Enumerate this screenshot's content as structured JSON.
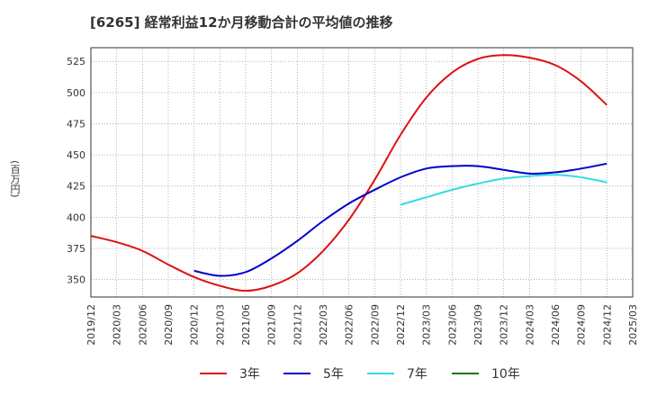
{
  "chart_data": {
    "type": "line",
    "title": "[6265]  経常利益12か月移動合計の平均値の推移",
    "ylabel": "(百万円)",
    "xlabel": "",
    "ylim": [
      336,
      536
    ],
    "yticks": [
      350,
      375,
      400,
      425,
      450,
      475,
      500,
      525
    ],
    "x_ticks": [
      "2019/12",
      "2020/03",
      "2020/06",
      "2020/09",
      "2020/12",
      "2021/03",
      "2021/06",
      "2021/09",
      "2021/12",
      "2022/03",
      "2022/06",
      "2022/09",
      "2022/12",
      "2023/03",
      "2023/06",
      "2023/09",
      "2023/12",
      "2024/03",
      "2024/06",
      "2024/09",
      "2024/12",
      "2025/03"
    ],
    "grid": true,
    "legend_position": "bottom",
    "series": [
      {
        "name": "3年",
        "color": "#dd1111",
        "x": [
          "2019/12",
          "2020/03",
          "2020/06",
          "2020/09",
          "2020/12",
          "2021/03",
          "2021/06",
          "2021/09",
          "2021/12",
          "2022/03",
          "2022/06",
          "2022/09",
          "2022/12",
          "2023/03",
          "2023/06",
          "2023/09",
          "2023/12",
          "2024/03",
          "2024/06",
          "2024/09",
          "2024/12"
        ],
        "values": [
          385,
          380,
          373,
          362,
          352,
          345,
          341,
          345,
          355,
          373,
          398,
          430,
          466,
          496,
          516,
          527,
          530,
          528,
          522,
          509,
          490
        ]
      },
      {
        "name": "5年",
        "color": "#0000cc",
        "x": [
          "2020/12",
          "2021/03",
          "2021/06",
          "2021/09",
          "2021/12",
          "2022/03",
          "2022/06",
          "2022/09",
          "2022/12",
          "2023/03",
          "2023/06",
          "2023/09",
          "2023/12",
          "2024/03",
          "2024/06",
          "2024/09",
          "2024/12"
        ],
        "values": [
          357,
          353,
          356,
          367,
          381,
          397,
          411,
          422,
          432,
          439,
          441,
          441,
          438,
          435,
          436,
          439,
          443
        ]
      },
      {
        "name": "7年",
        "color": "#33dddd",
        "x": [
          "2022/12",
          "2023/03",
          "2023/06",
          "2023/09",
          "2023/12",
          "2024/03",
          "2024/06",
          "2024/09",
          "2024/12"
        ],
        "values": [
          410,
          416,
          422,
          427,
          431,
          433,
          434,
          432,
          428
        ]
      },
      {
        "name": "10年",
        "color": "#117711",
        "x": [],
        "values": []
      }
    ]
  }
}
